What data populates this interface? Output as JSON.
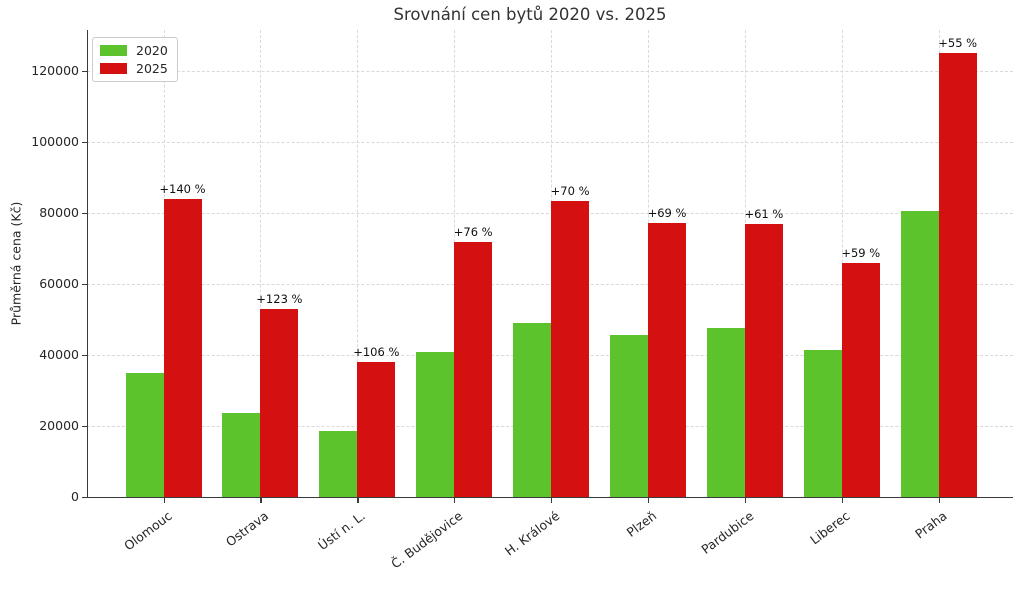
{
  "chart_data": {
    "type": "bar",
    "title": "Srovnání cen bytů 2020 vs. 2025",
    "ylabel": "Průměrná cena (Kč)",
    "xlabel": "",
    "categories": [
      "Olomouc",
      "Ostrava",
      "Ústí n. L.",
      "Č. Budějovice",
      "H. Králové",
      "Plzeň",
      "Pardubice",
      "Liberec",
      "Praha"
    ],
    "series": [
      {
        "name": "2020",
        "color": "#5cc32c",
        "values": [
          35000,
          23700,
          18500,
          40800,
          49000,
          45600,
          47700,
          41500,
          80600
        ]
      },
      {
        "name": "2025",
        "color": "#d51010",
        "values": [
          84000,
          52900,
          38100,
          71800,
          83300,
          77100,
          76800,
          66000,
          124900
        ]
      }
    ],
    "annotations": {
      "above_series": "2025",
      "labels": [
        "+140 %",
        "+123 %",
        "+106 %",
        "+76 %",
        "+70 %",
        "+69 %",
        "+61 %",
        "+59 %",
        "+55 %"
      ]
    },
    "yticks": [
      0,
      20000,
      40000,
      60000,
      80000,
      100000,
      120000
    ],
    "ytick_labels": [
      "0",
      "20000",
      "40000",
      "60000",
      "80000",
      "100000",
      "120000"
    ],
    "ylim": [
      0,
      131400
    ],
    "grid": "dashed horizontal and vertical",
    "legend_position": "upper left",
    "colors": {
      "axis": "#3a3a3a",
      "grid": "#d9d9d9",
      "text": "#262626",
      "title": "#333333",
      "background": "#ffffff"
    }
  }
}
